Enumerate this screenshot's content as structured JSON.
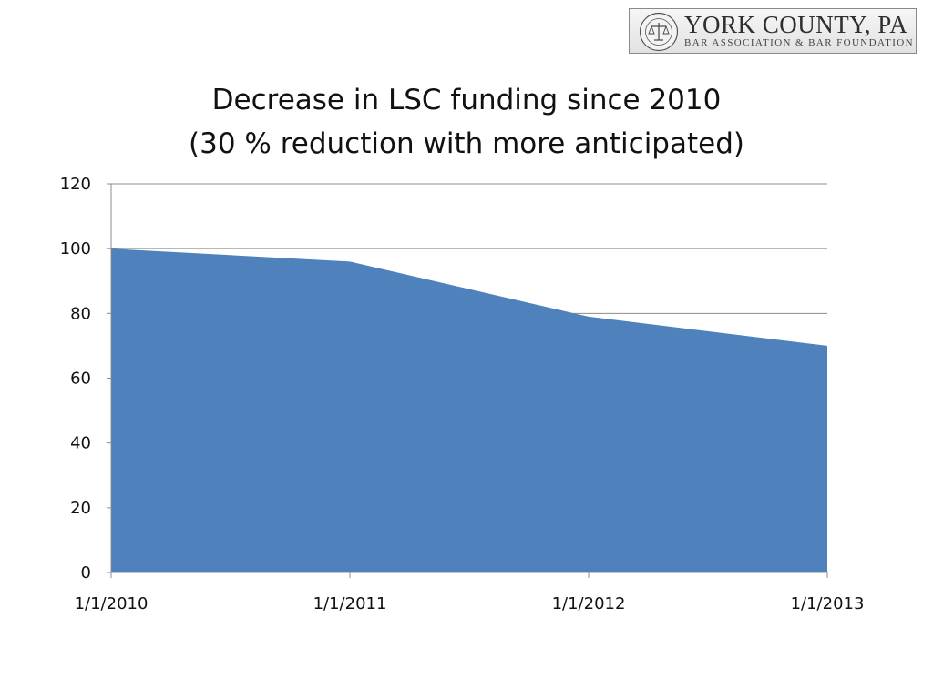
{
  "logo": {
    "name": "York County, Pa",
    "name_display": "YORK COUNTY, PA",
    "subtitle": "BAR ASSOCIATION & BAR FOUNDATION"
  },
  "chart_data": {
    "type": "area",
    "title": [
      "Decrease in LSC funding since 2010",
      "(30 % reduction with more anticipated)"
    ],
    "categories": [
      "1/1/2010",
      "1/1/2011",
      "1/1/2012",
      "1/1/2013"
    ],
    "values": [
      100,
      96,
      79,
      70
    ],
    "xlabel": "",
    "ylabel": "",
    "ylim": [
      0,
      120
    ],
    "yticks": [
      "0",
      "20",
      "40",
      "60",
      "80",
      "100",
      "120"
    ],
    "grid": true,
    "legend": "none",
    "fill_color": "#4F81BD"
  }
}
